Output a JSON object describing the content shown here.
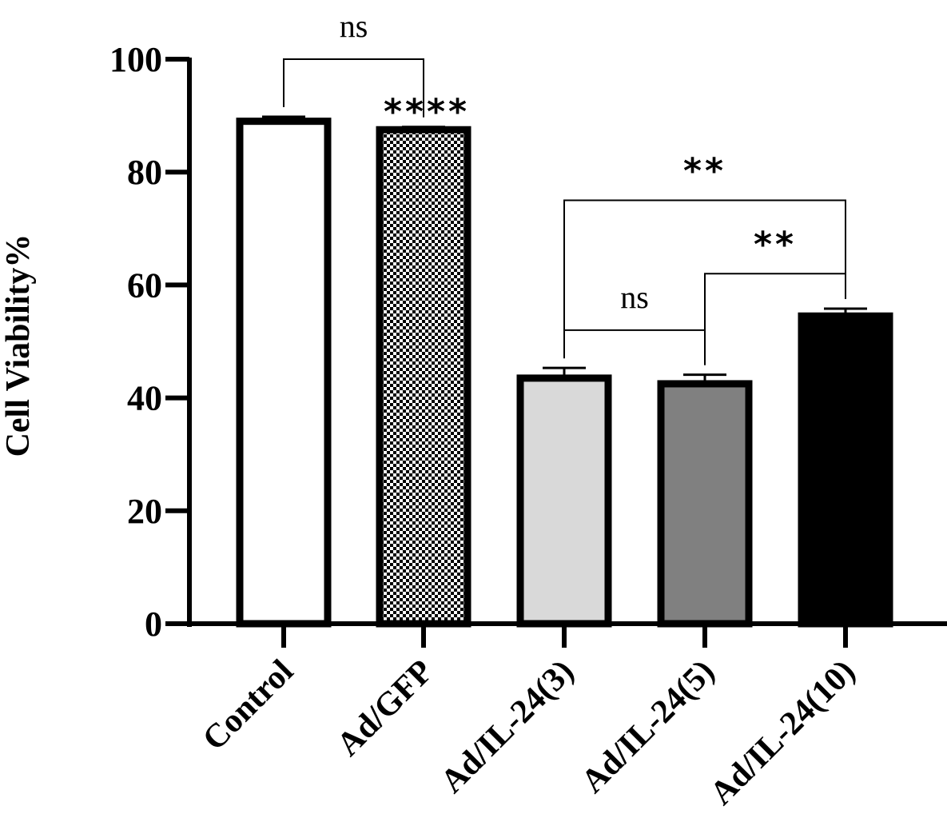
{
  "chart_data": {
    "type": "bar",
    "title": "",
    "xlabel": "",
    "ylabel": "Cell Viability%",
    "ylim": [
      0,
      100
    ],
    "yticks": [
      "0",
      "20",
      "40",
      "60",
      "80",
      "100"
    ],
    "categories": [
      "Control",
      "Ad/GFP",
      "Ad/IL-24(3)",
      "Ad/IL-24(5)",
      "Ad/IL-24(10)"
    ],
    "values": [
      89,
      87.5,
      43.5,
      42.5,
      54.5
    ],
    "errors": [
      0.8,
      0.5,
      1.8,
      1.6,
      1.3
    ],
    "fills": [
      "#ffffff",
      "checker",
      "#d9d9d9",
      "#808080",
      "#000000"
    ],
    "bar_annotations": [
      {
        "category_index": 1,
        "text": "****"
      }
    ],
    "comparisons": [
      {
        "from": 0,
        "to": 1,
        "label": "ns",
        "height": 100
      },
      {
        "from": 2,
        "to": 4,
        "label": "**",
        "height": 75
      },
      {
        "from": 3,
        "to": 4,
        "label": "**",
        "height": 62
      },
      {
        "from": 2,
        "to": 3,
        "label": "ns",
        "height": 52
      }
    ]
  }
}
